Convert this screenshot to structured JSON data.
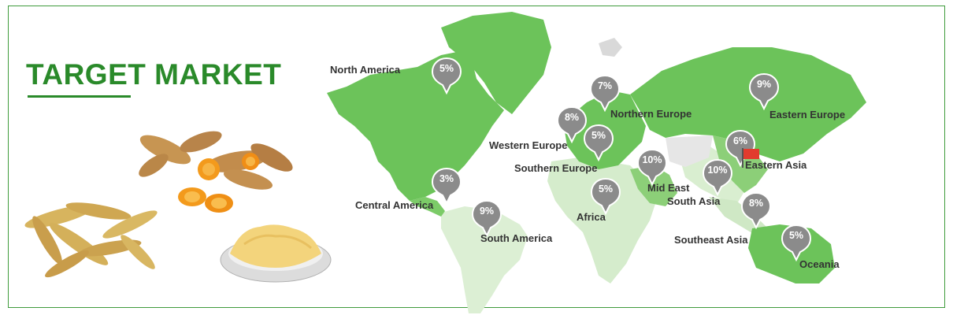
{
  "header": {
    "title": "TARGET MARKET"
  },
  "colors": {
    "brand_green": "#2a8a2a",
    "map_dark": "#6cc35a",
    "map_mid": "#a7dd96",
    "map_light": "#d9ecd2",
    "pin_gray": "#8b8b8b",
    "flag_red": "#e23b2e"
  },
  "markets": [
    {
      "region": "North America",
      "share": "5%"
    },
    {
      "region": "Northern Europe",
      "share": "7%"
    },
    {
      "region": "Eastern Europe",
      "share": "9%"
    },
    {
      "region": "Western Europe",
      "share": "8%"
    },
    {
      "region": "Southern Europe",
      "share": "5%"
    },
    {
      "region": "Eastern Asia",
      "share": "6%"
    },
    {
      "region": "Central America",
      "share": "3%"
    },
    {
      "region": "Mid East",
      "share": "10%"
    },
    {
      "region": "South Asia",
      "share": "10%"
    },
    {
      "region": "Africa",
      "share": "5%"
    },
    {
      "region": "South America",
      "share": "9%"
    },
    {
      "region": "Southeast Asia",
      "share": "8%"
    },
    {
      "region": "Oceania",
      "share": "5%"
    }
  ]
}
